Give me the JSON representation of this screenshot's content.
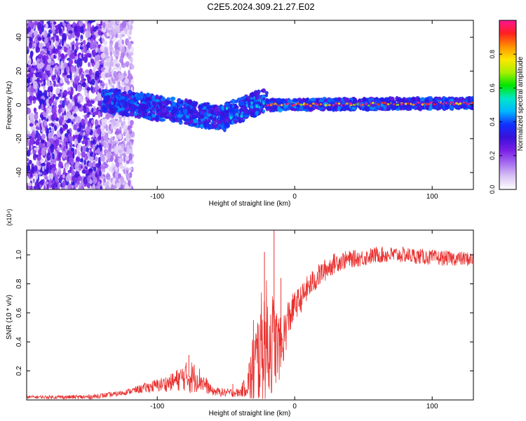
{
  "title": "C2E5.2024.309.21.27.E02",
  "chart_data": [
    {
      "type": "heatmap",
      "name": "spectrogram",
      "xlabel": "Height of straight line (km)",
      "ylabel": "Frequency (Hz)",
      "xlim": [
        -195,
        130
      ],
      "ylim": [
        -50,
        50
      ],
      "xticks": [
        -100,
        0,
        100
      ],
      "yticks": [
        -40,
        -20,
        0,
        20,
        40
      ],
      "colorbar": {
        "label": "Normalized spectral amplitude",
        "range": [
          0,
          1
        ],
        "ticks": [
          0.0,
          0.2,
          0.4,
          0.6,
          0.8
        ],
        "tick_labels": [
          "0.0",
          "0.2",
          "0.4",
          "0.6",
          "0.8"
        ],
        "colormap": [
          "#ffffff",
          "#d9c4f5",
          "#a86ff0",
          "#7a1fe6",
          "#3a10d8",
          "#1030ff",
          "#00b8ff",
          "#00e6c8",
          "#00e600",
          "#a8f000",
          "#ffe600",
          "#ff9000",
          "#ff2020",
          "#ff1493"
        ]
      },
      "regions": [
        {
          "description": "broadband noise, high density",
          "x": [
            -195,
            -140
          ],
          "freq": [
            -50,
            50
          ],
          "amplitude": 0.2
        },
        {
          "description": "broadband noise, fading",
          "x": [
            -140,
            -118
          ],
          "freq": [
            -50,
            50
          ],
          "amplitude": 0.1
        },
        {
          "description": "drifting signal band",
          "x": [
            -140,
            -50
          ],
          "freq_center": [
            3,
            -8
          ],
          "amplitude": 0.35
        },
        {
          "description": "signal band rising",
          "x": [
            -50,
            -20
          ],
          "freq_center": [
            -6,
            3
          ],
          "amplitude": 0.45
        },
        {
          "description": "stable carrier",
          "x": [
            -20,
            130
          ],
          "freq_center": [
            0,
            1
          ],
          "amplitude": 0.95
        }
      ]
    },
    {
      "type": "line",
      "name": "snr",
      "xlabel": "Height of straight line (km)",
      "ylabel": "SNR (10 * v/v)",
      "multiplier_label": "(x10⁴)",
      "color": "#e8302e",
      "xlim": [
        -195,
        130
      ],
      "ylim": [
        0,
        1.17
      ],
      "xticks": [
        -100,
        0,
        100
      ],
      "yticks": [
        0.2,
        0.4,
        0.6,
        0.8,
        1.0
      ],
      "ytick_labels": [
        "0.2",
        "0.4",
        "0.6",
        "0.8",
        "1.0"
      ],
      "trend": {
        "x": [
          -195,
          -150,
          -130,
          -120,
          -110,
          -100,
          -90,
          -80,
          -70,
          -60,
          -50,
          -40,
          -35,
          -30,
          -25,
          -20,
          -15,
          -10,
          -5,
          0,
          5,
          10,
          20,
          30,
          40,
          50,
          60,
          80,
          100,
          130
        ],
        "y": [
          0.02,
          0.02,
          0.04,
          0.06,
          0.08,
          0.1,
          0.12,
          0.16,
          0.15,
          0.06,
          0.05,
          0.05,
          0.1,
          0.18,
          0.35,
          0.4,
          0.4,
          0.35,
          0.55,
          0.65,
          0.7,
          0.78,
          0.88,
          0.95,
          0.97,
          0.98,
          1.0,
          1.0,
          0.98,
          0.97
        ]
      },
      "noise_amplitude": {
        "x": [
          -195,
          -120,
          -90,
          -75,
          -60,
          -40,
          -35,
          -30,
          -20,
          -10,
          0,
          20,
          40,
          130
        ],
        "y": [
          0.01,
          0.02,
          0.06,
          0.12,
          0.03,
          0.03,
          0.08,
          0.3,
          0.45,
          0.2,
          0.1,
          0.08,
          0.06,
          0.05
        ]
      },
      "peaks": [
        {
          "x": -77,
          "y": 0.31
        },
        {
          "x": -45,
          "y": 0.11
        },
        {
          "x": -30,
          "y": 0.55
        },
        {
          "x": -22,
          "y": 1.02
        },
        {
          "x": -15,
          "y": 1.17
        },
        {
          "x": -10,
          "y": 0.84
        }
      ]
    }
  ]
}
